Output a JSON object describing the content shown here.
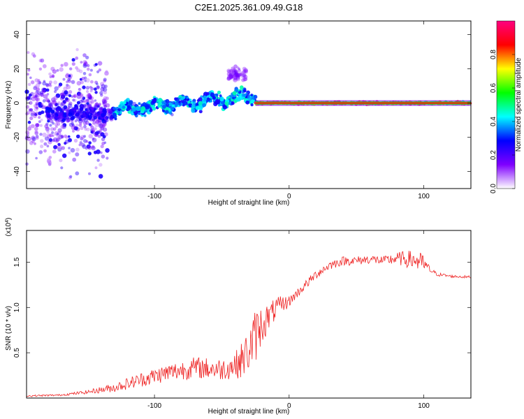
{
  "figure_title": "C2E1.2025.361.09.49.G18",
  "chart_data": [
    {
      "type": "scatter",
      "name": "spectrogram",
      "xlabel": "Height of straight line (km)",
      "ylabel": "Frequency (Hz)",
      "xlim": [
        -195,
        135
      ],
      "ylim": [
        -50,
        48
      ],
      "xticks": [
        -100,
        0,
        100
      ],
      "xtick_labels": [
        "-100",
        "0",
        "100"
      ],
      "yticks": [
        -40,
        -20,
        0,
        20,
        40
      ],
      "ytick_labels": [
        "-40",
        "-20",
        "0",
        "20",
        "40"
      ],
      "colorbar": {
        "label": "Normalized spectral amplitude",
        "range": [
          0,
          1
        ],
        "ticks": [
          0.0,
          0.2,
          0.4,
          0.6,
          0.8
        ],
        "tick_labels": [
          "0.0",
          "0.2",
          "0.4",
          "0.6",
          "0.8"
        ],
        "colormap": [
          "#ffffff",
          "#7f00ff",
          "#0000ff",
          "#00ffff",
          "#00ff00",
          "#ffff00",
          "#ff0000",
          "#ff0080"
        ]
      },
      "segments": [
        {
          "x_range": [
            -195,
            -135
          ],
          "y_center": -5,
          "y_spread": 45,
          "amplitude": 0.15,
          "description": "scattered noise"
        },
        {
          "x_range": [
            -180,
            -130
          ],
          "y_center": -6,
          "y_spread": 7,
          "amplitude": 0.25
        },
        {
          "x_range": [
            -130,
            -25
          ],
          "y_center_start": -4,
          "y_center_end": 4,
          "y_spread": 5,
          "amplitude": 0.4
        },
        {
          "x_range": [
            -45,
            -32
          ],
          "y_center": 17,
          "y_spread": 6,
          "amplitude": 0.15
        },
        {
          "x_range": [
            -25,
            100
          ],
          "y_center": 0,
          "y_spread": 1,
          "amplitude": 0.95
        },
        {
          "x_range": [
            100,
            135
          ],
          "y_center": 0,
          "y_spread": 1,
          "amplitude": 0.75
        }
      ]
    },
    {
      "type": "line",
      "name": "snr",
      "xlabel": "Height of straight line (km)",
      "ylabel": "SNR (10 * v/v)",
      "y_scale_label": "(x10^4)",
      "xlim": [
        -195,
        135
      ],
      "ylim": [
        0,
        1.85
      ],
      "xticks": [
        -100,
        0,
        100
      ],
      "xtick_labels": [
        "-100",
        "0",
        "100"
      ],
      "yticks": [
        0.5,
        1.0,
        1.5
      ],
      "ytick_labels": [
        "0.5",
        "1.0",
        "1.5"
      ],
      "color": "#ee2222",
      "x": [
        -195,
        -170,
        -150,
        -130,
        -110,
        -90,
        -70,
        -50,
        -40,
        -35,
        -30,
        -25,
        -20,
        -15,
        -10,
        -5,
        0,
        10,
        20,
        30,
        40,
        50,
        60,
        70,
        80,
        90,
        95,
        100,
        105,
        110,
        120,
        135
      ],
      "y": [
        0.02,
        0.03,
        0.06,
        0.1,
        0.18,
        0.25,
        0.3,
        0.28,
        0.32,
        0.36,
        0.45,
        0.6,
        0.75,
        0.85,
        0.95,
        1.0,
        1.05,
        1.2,
        1.35,
        1.45,
        1.5,
        1.5,
        1.52,
        1.5,
        1.52,
        1.5,
        1.48,
        1.45,
        1.4,
        1.36,
        1.34,
        1.33
      ],
      "noise": [
        0.01,
        0.01,
        0.02,
        0.05,
        0.08,
        0.1,
        0.12,
        0.12,
        0.15,
        0.2,
        0.25,
        0.3,
        0.22,
        0.15,
        0.12,
        0.1,
        0.06,
        0.05,
        0.05,
        0.05,
        0.05,
        0.05,
        0.05,
        0.05,
        0.07,
        0.1,
        0.12,
        0.1,
        0.03,
        0.02,
        0.015,
        0.015
      ]
    }
  ]
}
